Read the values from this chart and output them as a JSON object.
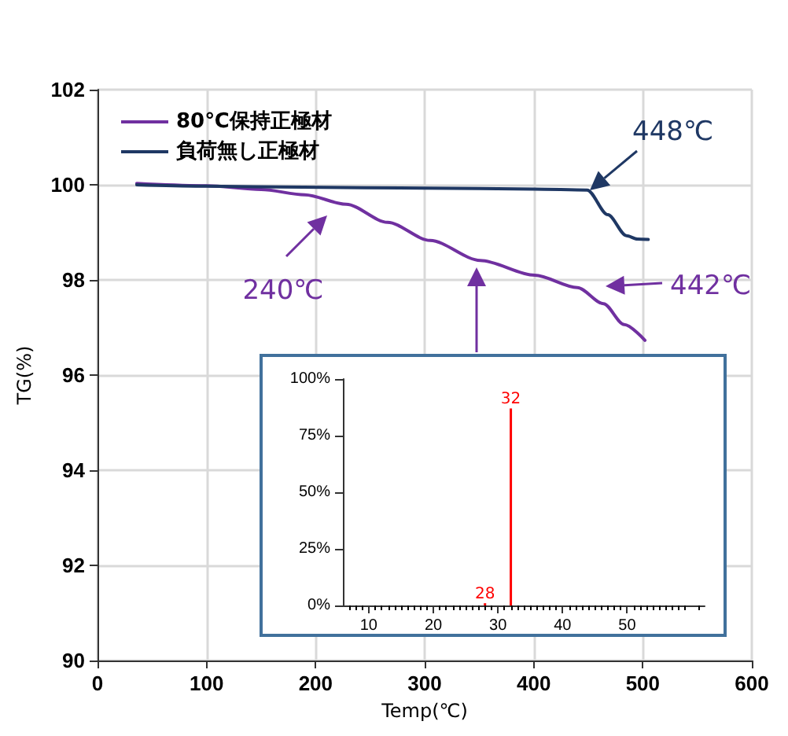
{
  "chart_data": [
    {
      "type": "line",
      "xlabel": "Temp(℃)",
      "ylabel": "TG(%)",
      "xlim": [
        0,
        600
      ],
      "xticks": [
        0,
        100,
        200,
        300,
        400,
        500,
        600
      ],
      "ylim": [
        90,
        102
      ],
      "yticks": [
        90,
        92,
        94,
        96,
        98,
        100,
        102
      ],
      "grid": true,
      "legend": "top left",
      "marker": "none",
      "line_style": "solid",
      "series": [
        {
          "name": "80℃保持正極材",
          "color": "#7030a0",
          "x": [
            36,
            100,
            150,
            190,
            228,
            266,
            305,
            351,
            401,
            440,
            464,
            483,
            502
          ],
          "values": [
            100.03,
            99.98,
            99.9,
            99.79,
            99.59,
            99.21,
            98.83,
            98.41,
            98.1,
            97.84,
            97.5,
            97.06,
            96.73
          ]
        },
        {
          "name": "負荷無し正極材",
          "color": "#1f3864",
          "x": [
            36,
            100,
            189,
            300,
            400,
            449,
            468,
            485,
            495,
            505
          ],
          "values": [
            100.0,
            99.97,
            99.95,
            99.93,
            99.91,
            99.89,
            99.37,
            98.93,
            98.86,
            98.85
          ]
        }
      ],
      "annotations": [
        "448℃",
        "240℃",
        "442℃"
      ]
    },
    {
      "type": "bar",
      "color": "#ff0000",
      "x": [
        28,
        32
      ],
      "values": [
        1,
        87
      ],
      "xlim": [
        6,
        62
      ],
      "xticks": [
        10,
        20,
        30,
        40,
        50
      ],
      "ylim": [
        0,
        100
      ],
      "yticks": [
        {
          "value": 0,
          "label": "0%"
        },
        {
          "value": 25,
          "label": "25%"
        },
        {
          "value": 50,
          "label": "50%"
        },
        {
          "value": 75,
          "label": "75%"
        },
        {
          "value": 100,
          "label": "100%"
        }
      ],
      "grid": false,
      "annotations": [
        {
          "text": "28",
          "x": 28,
          "y": 1
        },
        {
          "text": "32",
          "x": 32,
          "y": 87
        }
      ]
    }
  ]
}
